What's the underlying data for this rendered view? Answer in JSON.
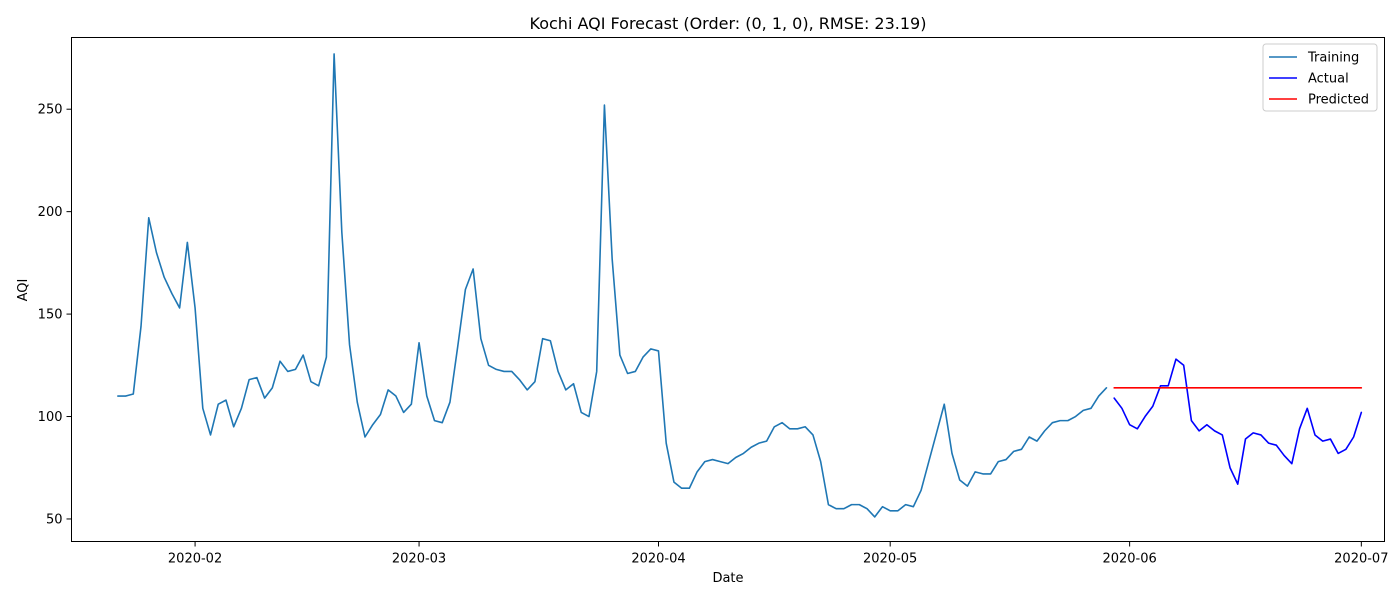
{
  "chart_data": {
    "type": "line",
    "title": "Kochi AQI Forecast (Order: (0, 1, 0), RMSE: 23.19)",
    "xlabel": "Date",
    "ylabel": "AQI",
    "x_range": [
      "2020-01-16",
      "2020-07-04"
    ],
    "ylim": [
      39,
      285
    ],
    "x_ticks": [
      {
        "date": "2020-02-01",
        "label": "2020-02"
      },
      {
        "date": "2020-03-01",
        "label": "2020-03"
      },
      {
        "date": "2020-04-01",
        "label": "2020-04"
      },
      {
        "date": "2020-05-01",
        "label": "2020-05"
      },
      {
        "date": "2020-06-01",
        "label": "2020-06"
      },
      {
        "date": "2020-07-01",
        "label": "2020-07"
      }
    ],
    "y_ticks": [
      50,
      100,
      150,
      200,
      250
    ],
    "grid": false,
    "legend_position": "top-right",
    "series": [
      {
        "name": "Training",
        "color": "#1f77b4",
        "points": [
          [
            "2020-01-22",
            110
          ],
          [
            "2020-01-23",
            110
          ],
          [
            "2020-01-24",
            111
          ],
          [
            "2020-01-25",
            144
          ],
          [
            "2020-01-26",
            197
          ],
          [
            "2020-01-27",
            180
          ],
          [
            "2020-01-28",
            168
          ],
          [
            "2020-01-29",
            160
          ],
          [
            "2020-01-30",
            153
          ],
          [
            "2020-01-31",
            185
          ],
          [
            "2020-02-01",
            153
          ],
          [
            "2020-02-02",
            104
          ],
          [
            "2020-02-03",
            91
          ],
          [
            "2020-02-04",
            106
          ],
          [
            "2020-02-05",
            108
          ],
          [
            "2020-02-06",
            95
          ],
          [
            "2020-02-07",
            104
          ],
          [
            "2020-02-08",
            118
          ],
          [
            "2020-02-09",
            119
          ],
          [
            "2020-02-10",
            109
          ],
          [
            "2020-02-11",
            114
          ],
          [
            "2020-02-12",
            127
          ],
          [
            "2020-02-13",
            122
          ],
          [
            "2020-02-14",
            123
          ],
          [
            "2020-02-15",
            130
          ],
          [
            "2020-02-16",
            117
          ],
          [
            "2020-02-17",
            115
          ],
          [
            "2020-02-18",
            129
          ],
          [
            "2020-02-19",
            277
          ],
          [
            "2020-02-20",
            190
          ],
          [
            "2020-02-21",
            135
          ],
          [
            "2020-02-22",
            107
          ],
          [
            "2020-02-23",
            90
          ],
          [
            "2020-02-24",
            96
          ],
          [
            "2020-02-25",
            101
          ],
          [
            "2020-02-26",
            113
          ],
          [
            "2020-02-27",
            110
          ],
          [
            "2020-02-28",
            102
          ],
          [
            "2020-02-29",
            106
          ],
          [
            "2020-03-01",
            136
          ],
          [
            "2020-03-02",
            110
          ],
          [
            "2020-03-03",
            98
          ],
          [
            "2020-03-04",
            97
          ],
          [
            "2020-03-05",
            107
          ],
          [
            "2020-03-06",
            134
          ],
          [
            "2020-03-07",
            162
          ],
          [
            "2020-03-08",
            172
          ],
          [
            "2020-03-09",
            138
          ],
          [
            "2020-03-10",
            125
          ],
          [
            "2020-03-11",
            123
          ],
          [
            "2020-03-12",
            122
          ],
          [
            "2020-03-13",
            122
          ],
          [
            "2020-03-14",
            118
          ],
          [
            "2020-03-15",
            113
          ],
          [
            "2020-03-16",
            117
          ],
          [
            "2020-03-17",
            138
          ],
          [
            "2020-03-18",
            137
          ],
          [
            "2020-03-19",
            122
          ],
          [
            "2020-03-20",
            113
          ],
          [
            "2020-03-21",
            116
          ],
          [
            "2020-03-22",
            102
          ],
          [
            "2020-03-23",
            100
          ],
          [
            "2020-03-24",
            122
          ],
          [
            "2020-03-25",
            252
          ],
          [
            "2020-03-26",
            177
          ],
          [
            "2020-03-27",
            130
          ],
          [
            "2020-03-28",
            121
          ],
          [
            "2020-03-29",
            122
          ],
          [
            "2020-03-30",
            129
          ],
          [
            "2020-03-31",
            133
          ],
          [
            "2020-04-01",
            132
          ],
          [
            "2020-04-02",
            87
          ],
          [
            "2020-04-03",
            68
          ],
          [
            "2020-04-04",
            65
          ],
          [
            "2020-04-05",
            65
          ],
          [
            "2020-04-06",
            73
          ],
          [
            "2020-04-07",
            78
          ],
          [
            "2020-04-08",
            79
          ],
          [
            "2020-04-09",
            78
          ],
          [
            "2020-04-10",
            77
          ],
          [
            "2020-04-11",
            80
          ],
          [
            "2020-04-12",
            82
          ],
          [
            "2020-04-13",
            85
          ],
          [
            "2020-04-14",
            87
          ],
          [
            "2020-04-15",
            88
          ],
          [
            "2020-04-16",
            95
          ],
          [
            "2020-04-17",
            97
          ],
          [
            "2020-04-18",
            94
          ],
          [
            "2020-04-19",
            94
          ],
          [
            "2020-04-20",
            95
          ],
          [
            "2020-04-21",
            91
          ],
          [
            "2020-04-22",
            78
          ],
          [
            "2020-04-23",
            57
          ],
          [
            "2020-04-24",
            55
          ],
          [
            "2020-04-25",
            55
          ],
          [
            "2020-04-26",
            57
          ],
          [
            "2020-04-27",
            57
          ],
          [
            "2020-04-28",
            55
          ],
          [
            "2020-04-29",
            51
          ],
          [
            "2020-04-30",
            56
          ],
          [
            "2020-05-01",
            54
          ],
          [
            "2020-05-02",
            54
          ],
          [
            "2020-05-03",
            57
          ],
          [
            "2020-05-04",
            56
          ],
          [
            "2020-05-05",
            64
          ],
          [
            "2020-05-06",
            78
          ],
          [
            "2020-05-07",
            92
          ],
          [
            "2020-05-08",
            106
          ],
          [
            "2020-05-09",
            82
          ],
          [
            "2020-05-10",
            69
          ],
          [
            "2020-05-11",
            66
          ],
          [
            "2020-05-12",
            73
          ],
          [
            "2020-05-13",
            72
          ],
          [
            "2020-05-14",
            72
          ],
          [
            "2020-05-15",
            78
          ],
          [
            "2020-05-16",
            79
          ],
          [
            "2020-05-17",
            83
          ],
          [
            "2020-05-18",
            84
          ],
          [
            "2020-05-19",
            90
          ],
          [
            "2020-05-20",
            88
          ],
          [
            "2020-05-21",
            93
          ],
          [
            "2020-05-22",
            97
          ],
          [
            "2020-05-23",
            98
          ],
          [
            "2020-05-24",
            98
          ],
          [
            "2020-05-25",
            100
          ],
          [
            "2020-05-26",
            103
          ],
          [
            "2020-05-27",
            104
          ],
          [
            "2020-05-28",
            110
          ],
          [
            "2020-05-29",
            114
          ]
        ]
      },
      {
        "name": "Actual",
        "color": "#0000ff",
        "points": [
          [
            "2020-05-30",
            109
          ],
          [
            "2020-05-31",
            104
          ],
          [
            "2020-06-01",
            96
          ],
          [
            "2020-06-02",
            94
          ],
          [
            "2020-06-03",
            100
          ],
          [
            "2020-06-04",
            105
          ],
          [
            "2020-06-05",
            115
          ],
          [
            "2020-06-06",
            115
          ],
          [
            "2020-06-07",
            128
          ],
          [
            "2020-06-08",
            125
          ],
          [
            "2020-06-09",
            98
          ],
          [
            "2020-06-10",
            93
          ],
          [
            "2020-06-11",
            96
          ],
          [
            "2020-06-12",
            93
          ],
          [
            "2020-06-13",
            91
          ],
          [
            "2020-06-14",
            75
          ],
          [
            "2020-06-15",
            67
          ],
          [
            "2020-06-16",
            89
          ],
          [
            "2020-06-17",
            92
          ],
          [
            "2020-06-18",
            91
          ],
          [
            "2020-06-19",
            87
          ],
          [
            "2020-06-20",
            86
          ],
          [
            "2020-06-21",
            81
          ],
          [
            "2020-06-22",
            77
          ],
          [
            "2020-06-23",
            94
          ],
          [
            "2020-06-24",
            104
          ],
          [
            "2020-06-25",
            91
          ],
          [
            "2020-06-26",
            88
          ],
          [
            "2020-06-27",
            89
          ],
          [
            "2020-06-28",
            82
          ],
          [
            "2020-06-29",
            84
          ],
          [
            "2020-06-30",
            90
          ],
          [
            "2020-07-01",
            102
          ]
        ]
      },
      {
        "name": "Predicted",
        "color": "#ff0000",
        "points": [
          [
            "2020-05-30",
            114
          ],
          [
            "2020-07-01",
            114
          ]
        ]
      }
    ]
  }
}
